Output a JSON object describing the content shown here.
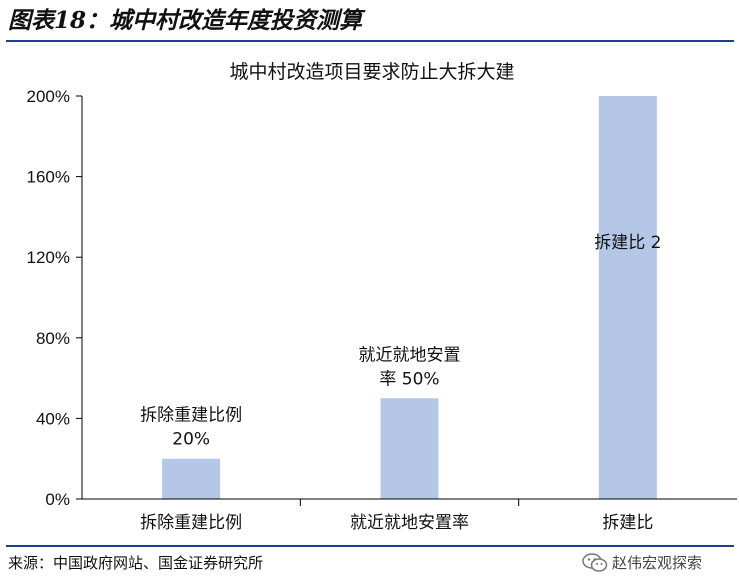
{
  "figure": {
    "title": "图表18：城中村改造年度投资测算",
    "source": "来源：中国政府网站、国金证券研究所",
    "watermark": "赵伟宏观探索",
    "watermark_icon": "wechat-icon"
  },
  "chart_data": {
    "type": "bar",
    "title": "城中村改造项目要求防止大拆大建",
    "categories": [
      "拆除重建比例",
      "就近就地安置率",
      "拆建比"
    ],
    "values": [
      20,
      50,
      200
    ],
    "data_labels": [
      [
        "拆除重建比例",
        "20%"
      ],
      [
        "就近就地安置",
        "率 50%"
      ],
      [
        "拆建比 2"
      ]
    ],
    "yticks": [
      "0%",
      "40%",
      "80%",
      "120%",
      "160%",
      "200%"
    ],
    "ytick_values": [
      0,
      40,
      80,
      120,
      160,
      200
    ],
    "ylim": [
      0,
      200
    ],
    "ylabel": "",
    "xlabel": "",
    "bar_color": "#b4c7e7",
    "grid": false,
    "legend": "none"
  }
}
